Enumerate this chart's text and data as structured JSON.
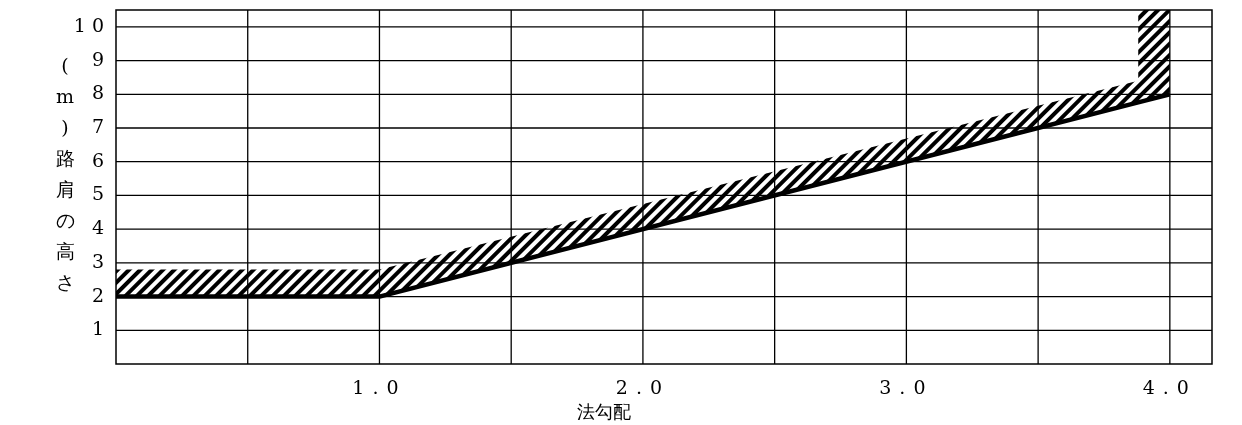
{
  "chart_data": {
    "type": "line",
    "xlabel": "法勾配",
    "ylabel": "(m)路肩の高さ",
    "xlim": [
      0,
      4.16
    ],
    "ylim": [
      0,
      10.5
    ],
    "xticks": [
      {
        "value": 0.5,
        "label": null
      },
      {
        "value": 1,
        "label": "1.0"
      },
      {
        "value": 1.5,
        "label": null
      },
      {
        "value": 2,
        "label": "2.0"
      },
      {
        "value": 2.5,
        "label": null
      },
      {
        "value": 3,
        "label": "3.0"
      },
      {
        "value": 3.5,
        "label": null
      },
      {
        "value": 4,
        "label": "4.0"
      }
    ],
    "yticks": [
      1,
      2,
      3,
      4,
      5,
      6,
      7,
      8,
      9,
      {
        "value": 10,
        "label": "1 0"
      }
    ],
    "grid": true,
    "line_style": "solid",
    "marker": "none",
    "series": [
      {
        "color": "#000000",
        "x": [
          0,
          1,
          3.88,
          3.88,
          4
        ],
        "values": [
          2,
          2,
          7.76,
          7.76,
          8
        ],
        "lower": [
          2,
          2,
          7.76,
          7.76,
          8
        ],
        "upper": [
          2.8,
          2.8,
          8.4,
          10.5,
          10.5
        ]
      }
    ]
  }
}
